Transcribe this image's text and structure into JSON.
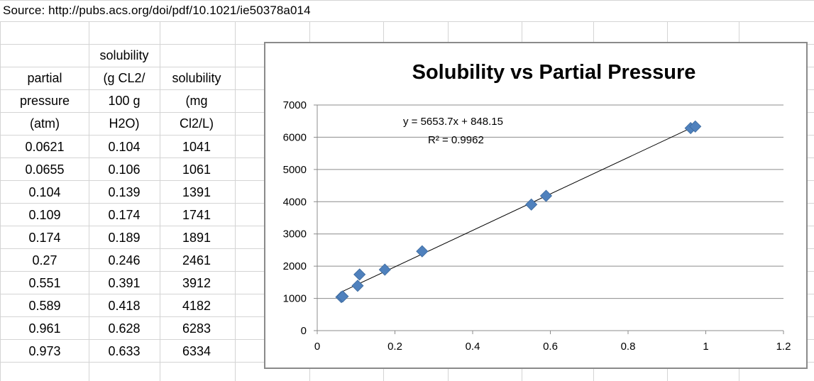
{
  "source_text": "Source:  http://pubs.acs.org/doi/pdf/10.1021/ie50378a014",
  "table": {
    "headers": [
      [
        "partial",
        "pressure",
        "(atm)"
      ],
      [
        "solubility",
        "(g CL2/",
        "100 g",
        "H2O)"
      ],
      [
        "solubility",
        "(mg",
        "Cl2/L)"
      ]
    ],
    "rows": [
      [
        "0.0621",
        "0.104",
        "1041"
      ],
      [
        "0.0655",
        "0.106",
        "1061"
      ],
      [
        "0.104",
        "0.139",
        "1391"
      ],
      [
        "0.109",
        "0.174",
        "1741"
      ],
      [
        "0.174",
        "0.189",
        "1891"
      ],
      [
        "0.27",
        "0.246",
        "2461"
      ],
      [
        "0.551",
        "0.391",
        "3912"
      ],
      [
        "0.589",
        "0.418",
        "4182"
      ],
      [
        "0.961",
        "0.628",
        "6283"
      ],
      [
        "0.973",
        "0.633",
        "6334"
      ]
    ]
  },
  "chart_data": {
    "type": "scatter",
    "title": "Solubility vs Partial Pressure",
    "xlabel": "",
    "ylabel": "",
    "xlim": [
      0,
      1.2
    ],
    "ylim": [
      0,
      7000
    ],
    "x_ticks": [
      "0",
      "0.2",
      "0.4",
      "0.6",
      "0.8",
      "1",
      "1.2"
    ],
    "y_ticks": [
      "0",
      "1000",
      "2000",
      "3000",
      "4000",
      "5000",
      "6000",
      "7000"
    ],
    "grid": "horizontal",
    "legend": "none",
    "marker_color": "#4f81bd",
    "trendline": {
      "slope": 5653.7,
      "intercept": 848.15,
      "equation": "y = 5653.7x + 848.15",
      "r_squared": "R² = 0.9962"
    },
    "points": [
      {
        "x": 0.0621,
        "y": 1041
      },
      {
        "x": 0.0655,
        "y": 1061
      },
      {
        "x": 0.104,
        "y": 1391
      },
      {
        "x": 0.109,
        "y": 1741
      },
      {
        "x": 0.174,
        "y": 1891
      },
      {
        "x": 0.27,
        "y": 2461
      },
      {
        "x": 0.551,
        "y": 3912
      },
      {
        "x": 0.589,
        "y": 4182
      },
      {
        "x": 0.961,
        "y": 6283
      },
      {
        "x": 0.973,
        "y": 6334
      }
    ]
  }
}
